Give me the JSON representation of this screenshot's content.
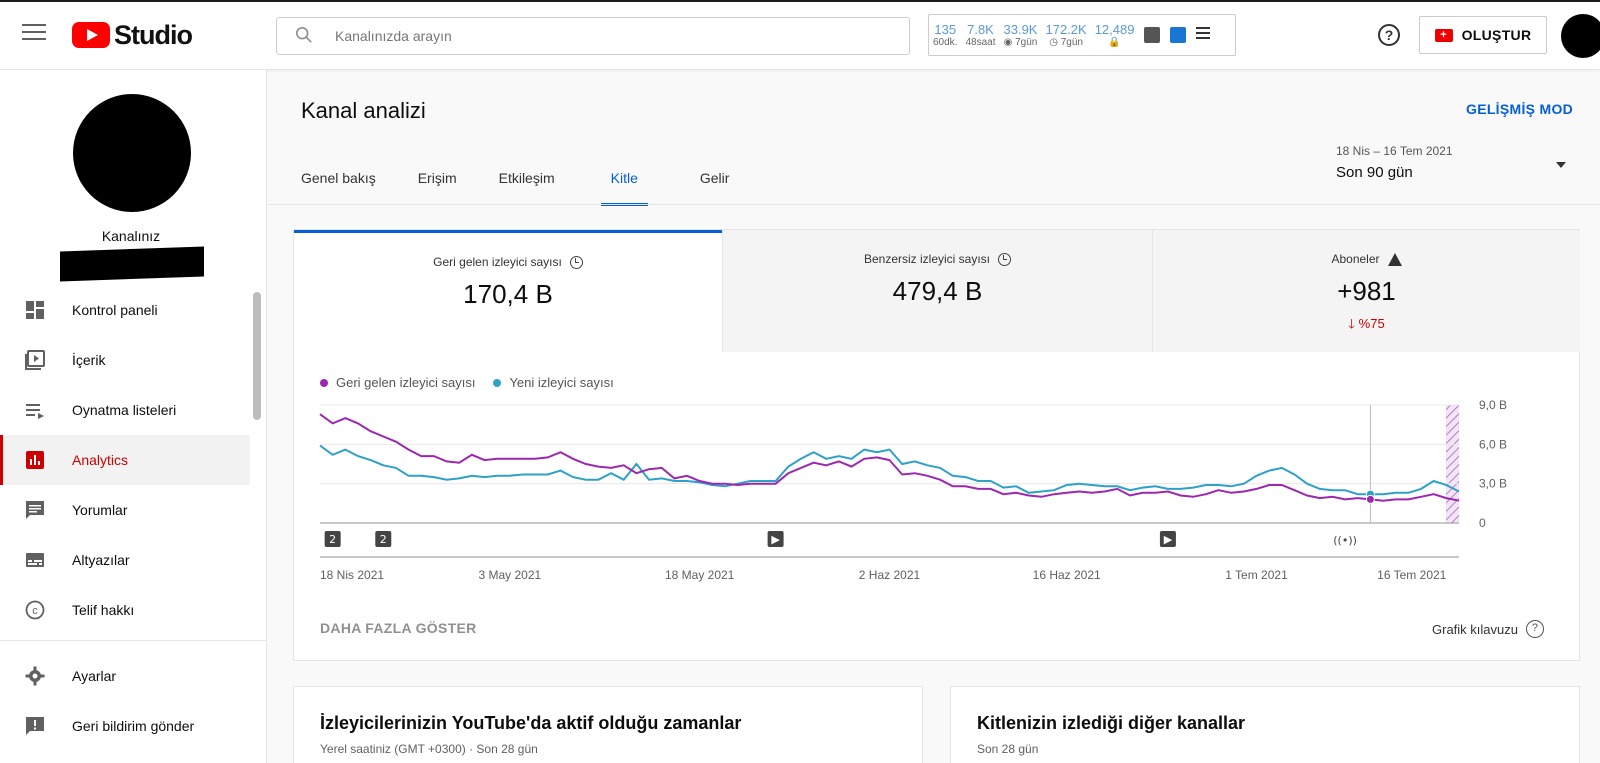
{
  "header": {
    "app_name": "Studio",
    "search_placeholder": "Kanalınızda arayın",
    "stats": [
      {
        "value": "135",
        "label": "60dk."
      },
      {
        "value": "7.8K",
        "label": "48saat"
      },
      {
        "value": "33.9K",
        "label": "◉ 7gün"
      },
      {
        "value": "172.2K",
        "label": "◷ 7gün"
      },
      {
        "value": "12,489",
        "label": "🔒"
      }
    ],
    "create_label": "OLUŞTUR"
  },
  "sidebar": {
    "channel_label": "Kanalınız",
    "items": [
      {
        "label": "Kontrol paneli",
        "icon": "dashboard-icon"
      },
      {
        "label": "İçerik",
        "icon": "content-icon"
      },
      {
        "label": "Oynatma listeleri",
        "icon": "playlist-icon"
      },
      {
        "label": "Analytics",
        "icon": "analytics-icon",
        "active": true
      },
      {
        "label": "Yorumlar",
        "icon": "comments-icon"
      },
      {
        "label": "Altyazılar",
        "icon": "subtitles-icon"
      },
      {
        "label": "Telif hakkı",
        "icon": "copyright-icon"
      },
      {
        "label": "Ayarlar",
        "icon": "settings-icon"
      },
      {
        "label": "Geri bildirim gönder",
        "icon": "feedback-icon"
      }
    ]
  },
  "main": {
    "title": "Kanal analizi",
    "advanced_mode": "GELİŞMİŞ MOD",
    "tabs": [
      "Genel bakış",
      "Erişim",
      "Etkileşim",
      "Kitle",
      "Gelir"
    ],
    "active_tab": "Kitle",
    "date_range": "18 Nis – 16 Tem 2021",
    "date_preset": "Son 90 gün",
    "metrics": [
      {
        "label": "Geri gelen izleyici sayısı",
        "value": "170,4 B"
      },
      {
        "label": "Benzersiz izleyici sayısı",
        "value": "479,4 B"
      },
      {
        "label": "Aboneler",
        "value": "+981",
        "delta": "%75"
      }
    ],
    "more_button": "DAHA FAZLA GÖSTER",
    "chart_guide": "Grafik kılavuzu",
    "bottom_cards": [
      {
        "title": "İzleyicilerinizin YouTube'da aktif olduğu zamanlar",
        "subtitle": "Yerel saatiniz (GMT +0300) · Son 28 gün"
      },
      {
        "title": "Kitlenizin izlediği diğer kanallar",
        "subtitle": "Son 28 gün"
      }
    ]
  },
  "chart_data": {
    "type": "line",
    "ylim": [
      0,
      9
    ],
    "ytick_labels": [
      "0",
      "3,0 B",
      "6,0 B",
      "9,0 B"
    ],
    "xtick_labels": [
      "18 Nis 2021",
      "3 May 2021",
      "18 May 2021",
      "2 Haz 2021",
      "16 Haz 2021",
      "1 Tem 2021",
      "16 Tem 2021"
    ],
    "colors": {
      "returning": "#9c27b0",
      "new": "#2ea1c9"
    },
    "series": [
      {
        "name": "Geri gelen izleyici sayısı",
        "values": [
          8.3,
          7.6,
          8.0,
          7.6,
          7.0,
          6.6,
          6.2,
          5.6,
          5.1,
          5.1,
          4.7,
          4.6,
          5.2,
          4.8,
          4.9,
          4.9,
          4.9,
          4.9,
          5.0,
          5.4,
          4.9,
          4.5,
          4.3,
          4.2,
          4.4,
          3.8,
          4.1,
          4.2,
          3.4,
          3.6,
          3.2,
          3.0,
          3.0,
          2.9,
          3.0,
          3.0,
          3.0,
          3.8,
          4.2,
          4.6,
          4.4,
          4.7,
          4.3,
          4.9,
          5.0,
          4.8,
          3.7,
          3.8,
          3.6,
          3.3,
          2.8,
          2.8,
          2.6,
          2.6,
          2.2,
          2.3,
          2.1,
          2.0,
          2.2,
          2.3,
          2.4,
          2.3,
          2.4,
          2.6,
          2.1,
          2.3,
          2.3,
          2.4,
          2.1,
          2.0,
          2.2,
          2.5,
          2.3,
          2.4,
          2.6,
          2.9,
          2.9,
          2.5,
          2.1,
          1.9,
          2.0,
          1.8,
          1.9,
          1.8,
          1.7,
          1.8,
          1.8,
          2.0,
          2.2,
          1.9,
          1.7
        ]
      },
      {
        "name": "Yeni izleyici sayısı",
        "values": [
          5.9,
          5.2,
          5.6,
          5.1,
          4.8,
          4.4,
          4.2,
          3.6,
          3.6,
          3.5,
          3.3,
          3.4,
          3.6,
          3.5,
          3.6,
          3.6,
          3.7,
          3.7,
          3.7,
          4.0,
          3.5,
          3.3,
          3.3,
          3.8,
          3.3,
          4.5,
          3.3,
          3.4,
          3.2,
          3.2,
          3.1,
          2.9,
          2.8,
          3.0,
          3.2,
          3.2,
          3.2,
          4.3,
          4.9,
          5.4,
          4.9,
          5.1,
          4.9,
          5.6,
          5.4,
          5.6,
          4.5,
          4.7,
          4.4,
          4.2,
          3.6,
          3.5,
          3.2,
          3.2,
          2.7,
          2.8,
          2.3,
          2.4,
          2.5,
          2.9,
          3.0,
          2.9,
          2.8,
          2.8,
          2.5,
          2.7,
          2.8,
          2.6,
          2.6,
          2.7,
          2.9,
          2.9,
          2.8,
          3.0,
          3.6,
          4.0,
          4.2,
          3.7,
          3.0,
          2.6,
          2.5,
          2.5,
          2.2,
          2.2,
          2.2,
          2.3,
          2.3,
          2.6,
          3.2,
          2.9,
          2.4
        ]
      }
    ],
    "markers": [
      "2",
      "2",
      "▶",
      "▶",
      "((•))"
    ],
    "grid": true
  }
}
